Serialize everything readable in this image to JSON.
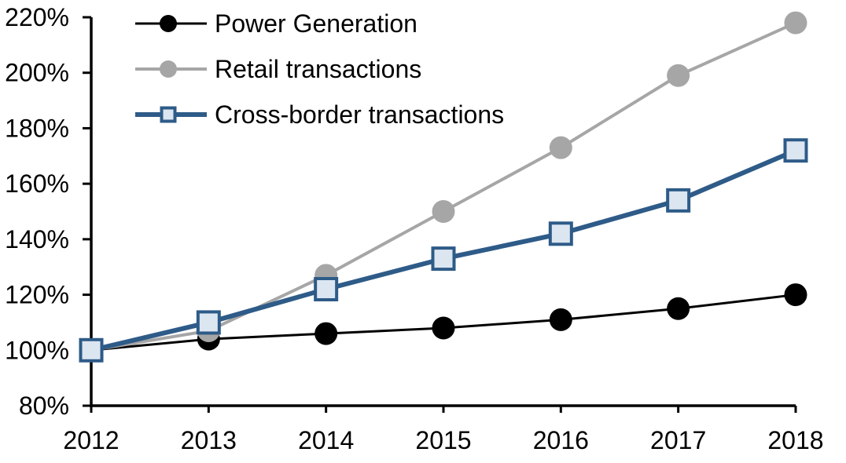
{
  "chart_data": {
    "type": "line",
    "title": "",
    "xlabel": "",
    "ylabel": "",
    "grid": false,
    "legend_position": "top-left-inside",
    "x_categories": [
      "2012",
      "2013",
      "2014",
      "2015",
      "2016",
      "2017",
      "2018"
    ],
    "y_axis": {
      "min": 80,
      "max": 220,
      "step": 20,
      "tick_labels": [
        "80%",
        "100%",
        "120%",
        "140%",
        "160%",
        "180%",
        "200%",
        "220%"
      ]
    },
    "series": [
      {
        "name": "Power Generation",
        "values": [
          100,
          104,
          106,
          108,
          111,
          115,
          120
        ],
        "color": "#000000",
        "line_width": 3,
        "marker": "circle",
        "marker_fill": "#000000"
      },
      {
        "name": "Retail transactions",
        "values": [
          100,
          107,
          127,
          150,
          173,
          199,
          218
        ],
        "color": "#A6A6A6",
        "line_width": 4,
        "marker": "circle",
        "marker_fill": "#A6A6A6"
      },
      {
        "name": "Cross-border transactions",
        "values": [
          100,
          110,
          122,
          133,
          142,
          154,
          172
        ],
        "color": "#2E5B88",
        "line_width": 6,
        "marker": "square",
        "marker_fill": "#DCE6F1"
      }
    ]
  },
  "colors": {
    "background": "#FFFFFF",
    "axis": "#000000",
    "text": "#000000"
  }
}
